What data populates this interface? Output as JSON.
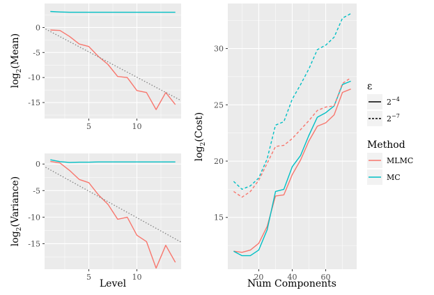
{
  "colors": {
    "mlmc": "#F8766D",
    "mc": "#00BFC4",
    "trend": "#808080",
    "panel": "#EBEBEB",
    "grid": "#FFFFFF"
  },
  "chart_data": [
    {
      "type": "line",
      "panel": "mean",
      "xlabel": "",
      "ylabel": "log2(Mean)",
      "ylabel_main": "log",
      "ylabel_sub": "2",
      "ylabel_rest": "(Mean)",
      "xlim": [
        0.4,
        14.6
      ],
      "ylim": [
        -18.2,
        4.8
      ],
      "xticks": [
        5,
        10
      ],
      "yticks": [
        0,
        -5,
        -10,
        -15
      ],
      "xtick_labels": [
        "5",
        "10"
      ],
      "ytick_labels": [
        "0",
        "-5",
        "-10",
        "-15"
      ],
      "series": [
        {
          "name": "MLMC",
          "x": [
            1,
            2,
            3,
            4,
            5,
            6,
            7,
            8,
            9,
            10,
            11,
            12,
            13,
            14
          ],
          "y": [
            -0.5,
            -0.6,
            -1.8,
            -3.3,
            -3.8,
            -5.8,
            -7.4,
            -9.8,
            -10.0,
            -12.6,
            -13.0,
            -16.4,
            -13.0,
            -15.4
          ]
        },
        {
          "name": "MC",
          "x": [
            1,
            2,
            3,
            4,
            5,
            6,
            7,
            8,
            9,
            10,
            11,
            12,
            13,
            14
          ],
          "y": [
            3.2,
            3.1,
            3.05,
            3.05,
            3.05,
            3.05,
            3.05,
            3.05,
            3.05,
            3.05,
            3.05,
            3.05,
            3.05,
            3.05
          ]
        },
        {
          "name": "trend",
          "x": [
            0.5,
            14.6
          ],
          "y": [
            -0.3,
            -14.6
          ]
        }
      ]
    },
    {
      "type": "line",
      "panel": "variance",
      "xlabel": "Level",
      "ylabel": "log2(Variance)",
      "ylabel_main": "log",
      "ylabel_sub": "2",
      "ylabel_rest": "(Variance)",
      "xlim": [
        0.4,
        14.6
      ],
      "ylim": [
        -19.8,
        2.0
      ],
      "xticks": [
        5,
        10
      ],
      "yticks": [
        0,
        -5,
        -10,
        -15
      ],
      "xtick_labels": [
        "5",
        "10"
      ],
      "ytick_labels": [
        "0",
        "-5",
        "-10",
        "-15"
      ],
      "series": [
        {
          "name": "MLMC",
          "x": [
            1,
            2,
            3,
            4,
            5,
            6,
            7,
            8,
            9,
            10,
            11,
            12,
            13,
            14
          ],
          "y": [
            0.5,
            0.2,
            -1.2,
            -2.9,
            -3.5,
            -5.8,
            -7.6,
            -10.4,
            -10.0,
            -13.4,
            -14.6,
            -19.6,
            -15.3,
            -18.5
          ]
        },
        {
          "name": "MC",
          "x": [
            1,
            2,
            3,
            4,
            5,
            6,
            7,
            8,
            9,
            10,
            11,
            12,
            13,
            14
          ],
          "y": [
            0.8,
            0.45,
            0.3,
            0.35,
            0.35,
            0.4,
            0.4,
            0.4,
            0.4,
            0.4,
            0.4,
            0.4,
            0.4,
            0.4
          ]
        },
        {
          "name": "trend",
          "x": [
            0.5,
            14.6
          ],
          "y": [
            -0.6,
            -14.7
          ]
        }
      ]
    },
    {
      "type": "line",
      "panel": "cost",
      "xlabel": "Num Components",
      "ylabel": "log2(Cost)",
      "ylabel_main": "log",
      "ylabel_sub": "2",
      "ylabel_rest": "(Cost)",
      "xlim": [
        1.5,
        78.5
      ],
      "ylim": [
        10.4,
        34.0
      ],
      "xticks": [
        20,
        40,
        60
      ],
      "yticks": [
        15,
        20,
        25,
        30
      ],
      "xtick_labels": [
        "20",
        "40",
        "60"
      ],
      "ytick_labels": [
        "15",
        "20",
        "25",
        "30"
      ],
      "series": [
        {
          "name": "MLMC ε=2^-4",
          "method": "MLMC",
          "eps": "2^-4",
          "x": [
            5,
            10,
            15,
            20,
            25,
            30,
            35,
            40,
            45,
            50,
            55,
            60,
            65,
            70,
            75
          ],
          "y": [
            12.0,
            11.9,
            12.1,
            12.7,
            14.2,
            16.9,
            17.0,
            18.8,
            20.1,
            21.8,
            23.1,
            23.4,
            24.1,
            26.1,
            26.4
          ]
        },
        {
          "name": "MC ε=2^-4",
          "method": "MC",
          "eps": "2^-4",
          "x": [
            5,
            10,
            15,
            20,
            25,
            30,
            35,
            40,
            45,
            50,
            55,
            60,
            65,
            70,
            75
          ],
          "y": [
            12.0,
            11.6,
            11.6,
            12.1,
            13.9,
            17.3,
            17.5,
            19.5,
            20.5,
            22.3,
            23.9,
            24.3,
            24.9,
            26.8,
            27.1
          ]
        },
        {
          "name": "MLMC ε=2^-7",
          "method": "MLMC",
          "eps": "2^-7",
          "x": [
            5,
            10,
            15,
            20,
            25,
            30,
            35,
            40,
            45,
            50,
            55,
            60,
            65,
            70,
            75
          ],
          "y": [
            17.3,
            16.8,
            17.3,
            18.3,
            19.8,
            21.3,
            21.4,
            22.0,
            22.8,
            23.6,
            24.5,
            24.8,
            24.9,
            26.9,
            27.4
          ]
        },
        {
          "name": "MC ε=2^-7",
          "method": "MC",
          "eps": "2^-7",
          "x": [
            5,
            10,
            15,
            20,
            25,
            30,
            35,
            40,
            45,
            50,
            55,
            60,
            65,
            70,
            75
          ],
          "y": [
            18.2,
            17.5,
            17.8,
            18.5,
            20.2,
            23.2,
            23.5,
            25.5,
            26.8,
            28.2,
            29.9,
            30.3,
            31.0,
            32.7,
            33.1
          ]
        }
      ]
    }
  ],
  "legend": {
    "eps_title": "ε",
    "eps_items": [
      {
        "label_base": "2",
        "label_exp": "−4",
        "style": "solid"
      },
      {
        "label_base": "2",
        "label_exp": "−7",
        "style": "dashed"
      }
    ],
    "method_title": "Method",
    "method_items": [
      {
        "label": "MLMC",
        "color": "#F8766D"
      },
      {
        "label": "MC",
        "color": "#00BFC4"
      }
    ]
  }
}
